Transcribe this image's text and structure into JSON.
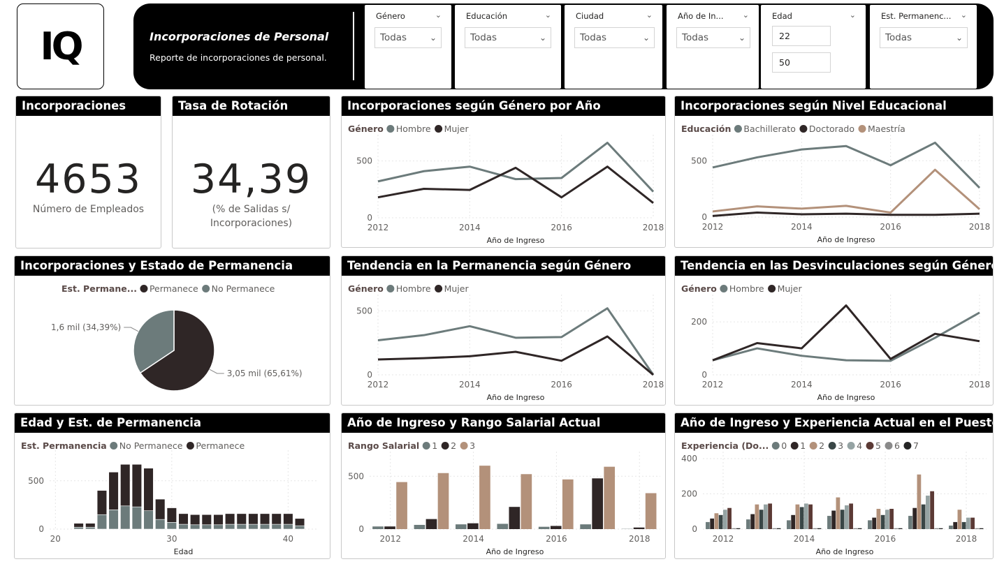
{
  "logo": "IQ",
  "header": {
    "title": "Incorporaciones de Personal",
    "subtitle": "Reporte de incorporaciones de personal."
  },
  "filters": [
    {
      "label": "Género",
      "value": "Todas"
    },
    {
      "label": "Educación",
      "value": "Todas"
    },
    {
      "label": "Ciudad",
      "value": "Todas"
    },
    {
      "label": "Año de In...",
      "value": "Todas"
    },
    {
      "label": "Edad",
      "min": "22",
      "max": "50"
    },
    {
      "label": "Est. Permanenc...",
      "value": "Todas"
    }
  ],
  "kpis": {
    "incorporaciones": {
      "title": "Incorporaciones",
      "value": "4653",
      "label": "Número de Empleados"
    },
    "rotacion": {
      "title": "Tasa de Rotación",
      "value": "34,39",
      "label": "(% de Salidas s/ Incorporaciones)"
    }
  },
  "colors": {
    "gray": "#6c7b7b",
    "dark": "#2f2626",
    "tan": "#b3917a",
    "c3": "#394646",
    "c4": "#95a3a3",
    "c5": "#5b3a35",
    "c6": "#8a8a8a",
    "c7": "#252525",
    "axis": "#605e5c",
    "grid": "#e6e6e6"
  },
  "chart_data": [
    {
      "id": "genero-anio",
      "type": "line",
      "title": "Incorporaciones según Género por Año",
      "legend_title": "Género",
      "xlabel": "Año de Ingreso",
      "x": [
        2012,
        2013,
        2014,
        2015,
        2016,
        2017,
        2018
      ],
      "xticks": [
        2012,
        2014,
        2016,
        2018
      ],
      "yticks": [
        0,
        500
      ],
      "ylim": [
        0,
        700
      ],
      "series": [
        {
          "name": "Hombre",
          "color": "#6c7b7b",
          "values": [
            320,
            410,
            450,
            340,
            350,
            660,
            230
          ]
        },
        {
          "name": "Mujer",
          "color": "#2f2626",
          "values": [
            180,
            255,
            245,
            440,
            180,
            450,
            130
          ]
        }
      ]
    },
    {
      "id": "educacion",
      "type": "line",
      "title": "Incorporaciones según Nivel Educacional",
      "legend_title": "Educación",
      "xlabel": "Año de Ingreso",
      "x": [
        2012,
        2013,
        2014,
        2015,
        2016,
        2017,
        2018
      ],
      "xticks": [
        2012,
        2014,
        2016,
        2018
      ],
      "yticks": [
        0,
        500
      ],
      "ylim": [
        0,
        700
      ],
      "series": [
        {
          "name": "Bachillerato",
          "color": "#6c7b7b",
          "values": [
            440,
            530,
            600,
            630,
            460,
            660,
            260
          ]
        },
        {
          "name": "Doctorado",
          "color": "#2f2626",
          "values": [
            10,
            40,
            25,
            30,
            20,
            20,
            30
          ]
        },
        {
          "name": "Maestría",
          "color": "#b3917a",
          "values": [
            50,
            95,
            75,
            100,
            40,
            420,
            70
          ]
        }
      ]
    },
    {
      "id": "permanencia-pie",
      "type": "pie",
      "title": "Incorporaciones y Estado de Permanencia",
      "legend_title": "Est. Permane...",
      "slices": [
        {
          "name": "Permanece",
          "color": "#2f2626",
          "value": 65.61,
          "label": "3,05 mil (65,61%)"
        },
        {
          "name": "No Permanece",
          "color": "#6c7b7b",
          "value": 34.39,
          "label": "1,6 mil (34,39%)"
        }
      ]
    },
    {
      "id": "permanencia-genero",
      "type": "line",
      "title": "Tendencia en la Permanencia según Género",
      "legend_title": "Género",
      "xlabel": "Año de Ingreso",
      "x": [
        2012,
        2013,
        2014,
        2015,
        2016,
        2017,
        2018
      ],
      "xticks": [
        2012,
        2014,
        2016,
        2018
      ],
      "yticks": [
        0,
        500
      ],
      "ylim": [
        0,
        600
      ],
      "series": [
        {
          "name": "Hombre",
          "color": "#6c7b7b",
          "values": [
            270,
            310,
            380,
            290,
            295,
            520,
            0
          ]
        },
        {
          "name": "Mujer",
          "color": "#2f2626",
          "values": [
            120,
            130,
            145,
            180,
            110,
            300,
            0
          ]
        }
      ]
    },
    {
      "id": "desvinculaciones",
      "type": "line",
      "title": "Tendencia en las Desvinculaciones según Género",
      "legend_title": "Género",
      "xlabel": "Año de Ingreso",
      "x": [
        2012,
        2013,
        2014,
        2015,
        2016,
        2017,
        2018
      ],
      "xticks": [
        2012,
        2014,
        2016,
        2018
      ],
      "yticks": [
        0,
        200
      ],
      "ylim": [
        0,
        290
      ],
      "series": [
        {
          "name": "Hombre",
          "color": "#6c7b7b",
          "values": [
            55,
            100,
            72,
            55,
            53,
            140,
            235
          ]
        },
        {
          "name": "Mujer",
          "color": "#2f2626",
          "values": [
            55,
            120,
            100,
            262,
            60,
            155,
            127
          ]
        }
      ]
    },
    {
      "id": "edad",
      "type": "bar",
      "stacked": true,
      "title": "Edad y Est. de Permanencia",
      "legend_title": "Est. Permanencia",
      "xlabel": "Edad",
      "x": [
        22,
        23,
        24,
        25,
        26,
        27,
        28,
        29,
        30,
        31,
        32,
        33,
        34,
        35,
        36,
        37,
        38,
        39,
        40,
        41
      ],
      "xticks": [
        20,
        30,
        40
      ],
      "xlim": [
        19.5,
        42.5
      ],
      "yticks": [
        0,
        500
      ],
      "ylim": [
        0,
        780
      ],
      "series": [
        {
          "name": "No Permanece",
          "color": "#6c7b7b",
          "values": [
            20,
            20,
            150,
            200,
            240,
            230,
            190,
            100,
            70,
            50,
            45,
            45,
            45,
            50,
            50,
            50,
            50,
            50,
            50,
            35
          ]
        },
        {
          "name": "Permanece",
          "color": "#2f2626",
          "values": [
            40,
            40,
            250,
            390,
            430,
            440,
            440,
            210,
            150,
            110,
            105,
            105,
            105,
            110,
            110,
            110,
            110,
            110,
            110,
            75
          ]
        }
      ]
    },
    {
      "id": "rango-salarial",
      "type": "bar",
      "title": "Año de Ingreso y Rango Salarial Actual",
      "legend_title": "Rango Salarial",
      "xlabel": "Año de Ingreso",
      "categories": [
        2012,
        2013,
        2014,
        2015,
        2016,
        2017,
        2018
      ],
      "xticks": [
        2012,
        2014,
        2016,
        2018
      ],
      "yticks": [
        0,
        500
      ],
      "ylim": [
        0,
        700
      ],
      "series": [
        {
          "name": "1",
          "color": "#6c7b7b",
          "values": [
            25,
            40,
            45,
            50,
            22,
            45,
            2
          ]
        },
        {
          "name": "2",
          "color": "#2f2626",
          "values": [
            25,
            95,
            55,
            210,
            30,
            480,
            15
          ]
        },
        {
          "name": "3",
          "color": "#b3917a",
          "values": [
            445,
            530,
            600,
            520,
            470,
            590,
            340
          ]
        }
      ]
    },
    {
      "id": "experiencia",
      "type": "bar",
      "title": "Año de Ingreso y Experiencia Actual en el Puesto",
      "legend_title": "Experiencia (Do...",
      "xlabel": "Año de Ingreso",
      "categories": [
        2012,
        2013,
        2014,
        2015,
        2016,
        2017,
        2018
      ],
      "xticks": [
        2012,
        2014,
        2016,
        2018
      ],
      "yticks": [
        0,
        200,
        400
      ],
      "ylim": [
        0,
        420
      ],
      "series": [
        {
          "name": "0",
          "color": "#6c7b7b",
          "values": [
            40,
            55,
            50,
            75,
            50,
            75,
            20
          ]
        },
        {
          "name": "1",
          "color": "#2f2626",
          "values": [
            60,
            85,
            80,
            105,
            65,
            120,
            40
          ]
        },
        {
          "name": "2",
          "color": "#b3917a",
          "values": [
            90,
            140,
            140,
            180,
            115,
            310,
            110
          ]
        },
        {
          "name": "3",
          "color": "#394646",
          "values": [
            80,
            110,
            125,
            110,
            80,
            140,
            40
          ]
        },
        {
          "name": "4",
          "color": "#95a3a3",
          "values": [
            110,
            140,
            145,
            135,
            110,
            190,
            65
          ]
        },
        {
          "name": "5",
          "color": "#5b3a35",
          "values": [
            120,
            145,
            140,
            145,
            115,
            215,
            65
          ]
        },
        {
          "name": "6",
          "color": "#8a8a8a",
          "values": [
            5,
            5,
            5,
            5,
            5,
            5,
            5
          ]
        },
        {
          "name": "7",
          "color": "#252525",
          "values": [
            5,
            5,
            5,
            5,
            5,
            5,
            5
          ]
        }
      ]
    }
  ]
}
